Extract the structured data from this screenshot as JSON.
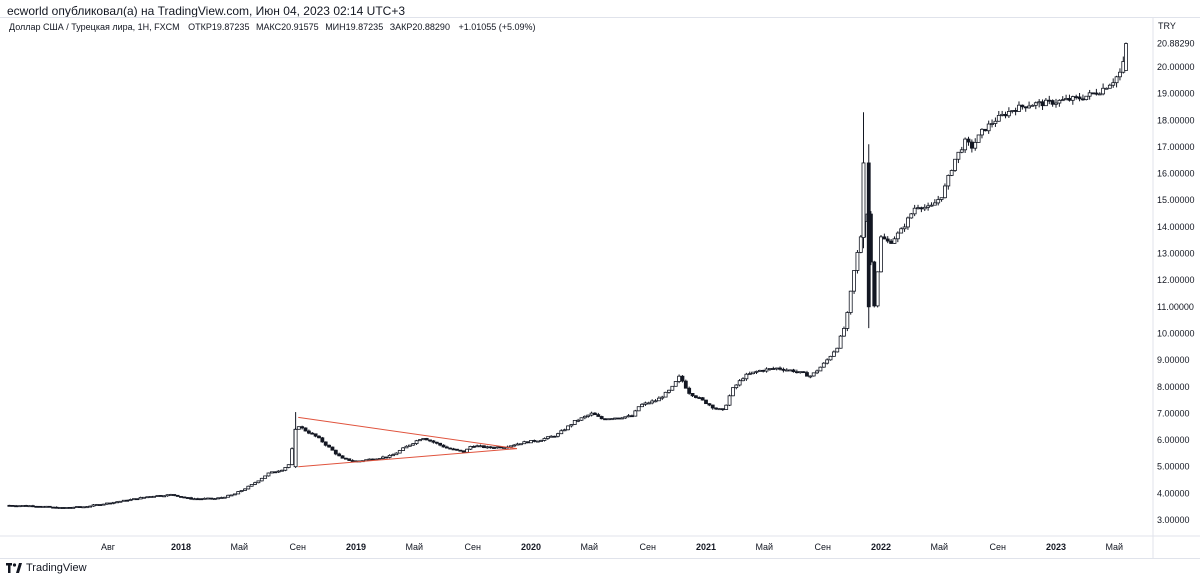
{
  "header": {
    "title": "ecworld опубликовал(а) на TradingView.com, Июн 04, 2023 02:14 UTC+3"
  },
  "legend": {
    "symbol": "Доллар США / Турецкая лира, 1Н, FXCM",
    "open_label": "ОТКР",
    "open": "19.87235",
    "high_label": "МАКС",
    "high": "20.91575",
    "low_label": "МИН",
    "low": "19.87235",
    "close_label": "ЗАКР",
    "close": "20.88290",
    "change": "+1.01055 (+5.09%)"
  },
  "price_axis": {
    "currency": "TRY",
    "last_price_label": "20.88290"
  },
  "footer": {
    "brand": "TradingView"
  },
  "colors": {
    "candle": "#131722",
    "trendline": "#e0533d",
    "grid": "#e0e3eb",
    "axis_text": "#131722"
  },
  "chart_data": {
    "type": "candlestick",
    "title": "Доллар США / Турецкая лира, 1Н, FXCM",
    "ylabel": "TRY",
    "ylim": [
      2.5,
      21.5
    ],
    "y_ticks": [
      "3.00000",
      "4.00000",
      "5.00000",
      "6.00000",
      "7.00000",
      "8.00000",
      "9.00000",
      "10.00000",
      "11.00000",
      "12.00000",
      "13.00000",
      "14.00000",
      "15.00000",
      "16.00000",
      "17.00000",
      "18.00000",
      "19.00000",
      "20.00000"
    ],
    "x_ticks": [
      {
        "label": "Авг",
        "t": 2017.583,
        "bold": false
      },
      {
        "label": "2018",
        "t": 2018.0,
        "bold": true
      },
      {
        "label": "Май",
        "t": 2018.333,
        "bold": false
      },
      {
        "label": "Сен",
        "t": 2018.667,
        "bold": false
      },
      {
        "label": "2019",
        "t": 2019.0,
        "bold": true
      },
      {
        "label": "Май",
        "t": 2019.333,
        "bold": false
      },
      {
        "label": "Сен",
        "t": 2019.667,
        "bold": false
      },
      {
        "label": "2020",
        "t": 2020.0,
        "bold": true
      },
      {
        "label": "Май",
        "t": 2020.333,
        "bold": false
      },
      {
        "label": "Сен",
        "t": 2020.667,
        "bold": false
      },
      {
        "label": "2021",
        "t": 2021.0,
        "bold": true
      },
      {
        "label": "Май",
        "t": 2021.333,
        "bold": false
      },
      {
        "label": "Сен",
        "t": 2021.667,
        "bold": false
      },
      {
        "label": "2022",
        "t": 2022.0,
        "bold": true
      },
      {
        "label": "Май",
        "t": 2022.333,
        "bold": false
      },
      {
        "label": "Сен",
        "t": 2022.667,
        "bold": false
      },
      {
        "label": "2023",
        "t": 2023.0,
        "bold": true
      },
      {
        "label": "Май",
        "t": 2023.333,
        "bold": false
      }
    ],
    "price_path": [
      [
        2017.0,
        3.55
      ],
      [
        2017.17,
        3.53
      ],
      [
        2017.3,
        3.45
      ],
      [
        2017.45,
        3.5
      ],
      [
        2017.55,
        3.6
      ],
      [
        2017.7,
        3.75
      ],
      [
        2017.83,
        3.9
      ],
      [
        2017.95,
        3.95
      ],
      [
        2018.05,
        3.8
      ],
      [
        2018.2,
        3.8
      ],
      [
        2018.3,
        3.95
      ],
      [
        2018.4,
        4.3
      ],
      [
        2018.5,
        4.75
      ],
      [
        2018.58,
        4.9
      ],
      [
        2018.62,
        5.1
      ],
      [
        2018.66,
        6.6
      ],
      [
        2018.7,
        6.4
      ],
      [
        2018.78,
        6.1
      ],
      [
        2018.85,
        5.7
      ],
      [
        2018.92,
        5.3
      ],
      [
        2019.0,
        5.2
      ],
      [
        2019.1,
        5.3
      ],
      [
        2019.2,
        5.4
      ],
      [
        2019.3,
        5.8
      ],
      [
        2019.38,
        6.1
      ],
      [
        2019.45,
        5.9
      ],
      [
        2019.52,
        5.7
      ],
      [
        2019.58,
        5.6
      ],
      [
        2019.62,
        5.55
      ],
      [
        2019.66,
        5.8
      ],
      [
        2019.75,
        5.72
      ],
      [
        2019.85,
        5.75
      ],
      [
        2019.95,
        5.9
      ],
      [
        2020.05,
        6.0
      ],
      [
        2020.15,
        6.2
      ],
      [
        2020.25,
        6.7
      ],
      [
        2020.35,
        7.0
      ],
      [
        2020.4,
        6.8
      ],
      [
        2020.5,
        6.85
      ],
      [
        2020.58,
        6.9
      ],
      [
        2020.62,
        7.3
      ],
      [
        2020.72,
        7.5
      ],
      [
        2020.8,
        7.9
      ],
      [
        2020.85,
        8.4
      ],
      [
        2020.9,
        7.8
      ],
      [
        2020.95,
        7.6
      ],
      [
        2021.0,
        7.4
      ],
      [
        2021.05,
        7.2
      ],
      [
        2021.1,
        7.1
      ],
      [
        2021.15,
        7.9
      ],
      [
        2021.22,
        8.4
      ],
      [
        2021.3,
        8.6
      ],
      [
        2021.4,
        8.7
      ],
      [
        2021.5,
        8.6
      ],
      [
        2021.6,
        8.4
      ],
      [
        2021.68,
        8.9
      ],
      [
        2021.75,
        9.5
      ],
      [
        2021.8,
        10.4
      ],
      [
        2021.85,
        12.5
      ],
      [
        2021.88,
        13.5
      ],
      [
        2021.92,
        14.8
      ],
      [
        2021.96,
        11.0
      ],
      [
        2022.0,
        13.6
      ],
      [
        2022.05,
        13.4
      ],
      [
        2022.12,
        13.9
      ],
      [
        2022.2,
        14.8
      ],
      [
        2022.28,
        14.7
      ],
      [
        2022.35,
        15.2
      ],
      [
        2022.42,
        16.5
      ],
      [
        2022.48,
        17.2
      ],
      [
        2022.52,
        17.0
      ],
      [
        2022.58,
        17.6
      ],
      [
        2022.65,
        18.0
      ],
      [
        2022.75,
        18.4
      ],
      [
        2022.85,
        18.6
      ],
      [
        2022.95,
        18.65
      ],
      [
        2023.05,
        18.75
      ],
      [
        2023.15,
        18.85
      ],
      [
        2023.25,
        19.1
      ],
      [
        2023.33,
        19.5
      ],
      [
        2023.38,
        19.9
      ],
      [
        2023.4,
        20.88
      ]
    ],
    "trendlines": [
      {
        "from": [
          2018.67,
          6.85
        ],
        "to": [
          2019.92,
          5.68
        ]
      },
      {
        "from": [
          2018.67,
          5.0
        ],
        "to": [
          2019.92,
          5.68
        ]
      }
    ]
  }
}
